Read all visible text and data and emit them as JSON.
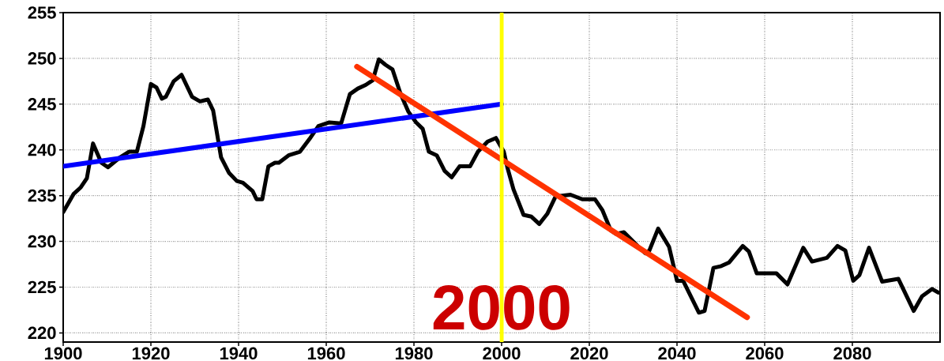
{
  "chart_data": {
    "type": "line",
    "xlim": [
      1900,
      2100
    ],
    "ylim": [
      219,
      255
    ],
    "xticks": [
      1900,
      1920,
      1940,
      1960,
      1980,
      2000,
      2020,
      2040,
      2060,
      2080
    ],
    "yticks": [
      220,
      225,
      230,
      235,
      240,
      245,
      250,
      255
    ],
    "grid": true,
    "marker": "none",
    "line_style": "solid",
    "series": [
      {
        "color": "#000000",
        "x": [
          1900,
          1902.4,
          1904,
          1905.4,
          1906.8,
          1908.7,
          1910.2,
          1913,
          1915,
          1916.8,
          1918.3,
          1920,
          1921.3,
          1922.5,
          1923.4,
          1925.2,
          1927,
          1929.4,
          1931.2,
          1933,
          1934.2,
          1936,
          1937.8,
          1939.6,
          1941,
          1943.2,
          1944.1,
          1945.4,
          1946.8,
          1948.3,
          1949.2,
          1951.4,
          1954,
          1956.2,
          1958.2,
          1960.7,
          1963.4,
          1965.4,
          1967.2,
          1969,
          1970.6,
          1972,
          1973.5,
          1975.1,
          1976.9,
          1978.7,
          1980.5,
          1982,
          1983.4,
          1985.2,
          1987,
          1988.6,
          1990.4,
          1992.8,
          1994.6,
          1996.8,
          1998.7,
          2000.5,
          2001.3,
          2002.7,
          2005,
          2006.8,
          2008.6,
          2010.4,
          2012.3,
          2015.7,
          2018.4,
          2021.3,
          2023,
          2024.9,
          2026.1,
          2027.9,
          2031,
          2032.8,
          2033.7,
          2035.7,
          2038.2,
          2040,
          2041.4,
          2045,
          2046.3,
          2048.3,
          2050.1,
          2051.9,
          2055,
          2056.4,
          2058.2,
          2060.4,
          2062.7,
          2065.2,
          2068.8,
          2070.8,
          2074.2,
          2076.6,
          2078.4,
          2080.2,
          2081.6,
          2083.8,
          2086.8,
          2090.5,
          2094,
          2095.9,
          2098.2,
          2099.6
        ],
        "values": [
          233.2,
          235.2,
          235.9,
          236.9,
          240.7,
          238.6,
          238.1,
          239.2,
          239.8,
          239.8,
          242.6,
          247.2,
          246.8,
          245.6,
          245.8,
          247.5,
          248.2,
          245.8,
          245.3,
          245.5,
          244.3,
          239.2,
          237.5,
          236.6,
          236.4,
          235.5,
          234.6,
          234.6,
          238.2,
          238.6,
          238.6,
          239.4,
          239.8,
          241.2,
          242.6,
          243.0,
          242.9,
          246.1,
          246.7,
          247.1,
          247.6,
          249.9,
          249.3,
          248.8,
          246.2,
          244.2,
          243.0,
          242.3,
          239.8,
          239.4,
          237.7,
          237.0,
          238.2,
          238.2,
          239.8,
          240.9,
          241.3,
          239.8,
          238.1,
          235.7,
          232.9,
          232.7,
          231.9,
          233.0,
          234.9,
          235.1,
          234.6,
          234.6,
          233.4,
          231.2,
          230.8,
          231.0,
          229.5,
          228.7,
          229.0,
          231.4,
          229.4,
          225.7,
          225.7,
          222.2,
          222.4,
          227.1,
          227.3,
          227.7,
          229.5,
          228.9,
          226.5,
          226.5,
          226.5,
          225.3,
          229.3,
          227.8,
          228.2,
          229.5,
          229.0,
          225.7,
          226.3,
          229.3,
          225.6,
          225.9,
          222.4,
          224.0,
          224.8,
          224.4
        ]
      },
      {
        "type": "line",
        "color": "#0000ff",
        "x": [
          1900,
          2000
        ],
        "values": [
          238.2,
          245.0
        ]
      },
      {
        "type": "line",
        "color": "#ff3300",
        "x": [
          1967,
          2056
        ],
        "values": [
          249.1,
          221.7
        ]
      }
    ],
    "ref_lines": [
      {
        "axis": "x",
        "value": 2000,
        "label": "2000",
        "color": "#ffff00"
      }
    ]
  }
}
